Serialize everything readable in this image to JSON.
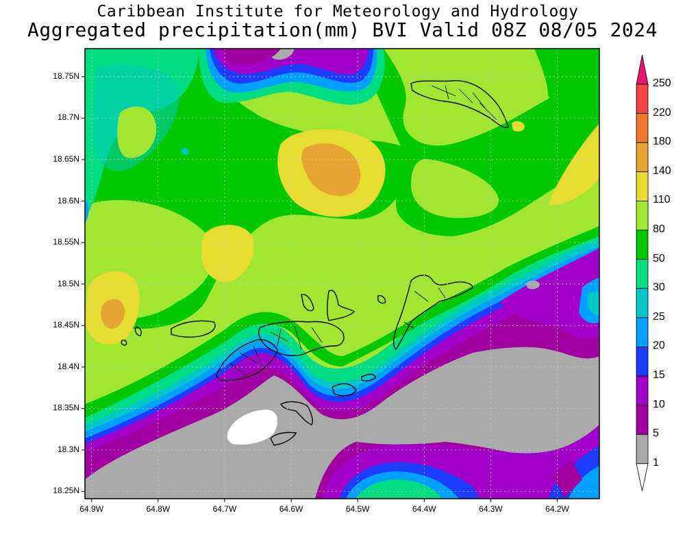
{
  "header": {
    "line1": "Caribbean Institute for Meteorology and Hydrology",
    "line2": "Aggregated precipitation(mm) BVI Valid 08Z 08/05 2024"
  },
  "map": {
    "lat_labels": [
      "18.75N",
      "18.7N",
      "18.65N",
      "18.6N",
      "18.55N",
      "18.5N",
      "18.45N",
      "18.4N",
      "18.35N",
      "18.3N",
      "18.25N"
    ],
    "lon_labels": [
      "64.9W",
      "64.8W",
      "64.7W",
      "64.6W",
      "64.5W",
      "64.4W",
      "64.3W",
      "64.2W"
    ],
    "lat_range": [
      18.24,
      18.79
    ],
    "lon_range": [
      64.91,
      64.14
    ],
    "grid": "dotted"
  },
  "colorbar": {
    "labels": [
      "250",
      "220",
      "180",
      "140",
      "110",
      "80",
      "50",
      "30",
      "25",
      "20",
      "15",
      "10",
      "5",
      "1"
    ],
    "colors": [
      "#e6196e",
      "#f04646",
      "#f0782d",
      "#e6a532",
      "#e6dc32",
      "#a0e632",
      "#00c800",
      "#00dc82",
      "#00c8c8",
      "#00a0ff",
      "#1e3cff",
      "#a000c8",
      "#a000a0",
      "#aaaaaa",
      "#ffffff"
    ]
  }
}
